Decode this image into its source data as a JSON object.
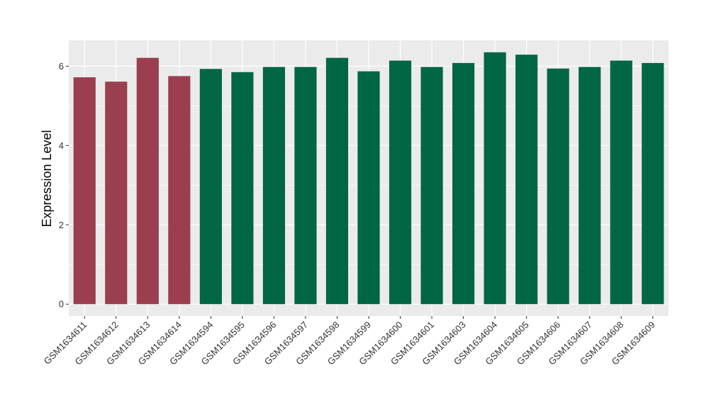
{
  "chart_data": {
    "type": "bar",
    "title": "",
    "xlabel": "",
    "ylabel": "Expression Level",
    "ylim": [
      -0.3,
      6.65
    ],
    "yticks": [
      0,
      2,
      4,
      6
    ],
    "grid": true,
    "legend": "none",
    "categories": [
      "GSM1634611",
      "GSM1634612",
      "GSM1634613",
      "GSM1634614",
      "GSM1634594",
      "GSM1634595",
      "GSM1634596",
      "GSM1634597",
      "GSM1634598",
      "GSM1634599",
      "GSM1634600",
      "GSM1634601",
      "GSM1634603",
      "GSM1634604",
      "GSM1634605",
      "GSM1634606",
      "GSM1634607",
      "GSM1634608",
      "GSM1634609"
    ],
    "values": [
      5.72,
      5.61,
      6.21,
      5.75,
      5.93,
      5.85,
      5.98,
      5.98,
      6.21,
      5.87,
      6.14,
      5.98,
      6.08,
      6.35,
      6.29,
      5.94,
      5.98,
      6.14,
      6.08
    ],
    "group_sizes": [
      4,
      15
    ],
    "colors": [
      "#9B3F50",
      "#006644"
    ],
    "panel_background": "#EBEBEB",
    "gridline_color": "#FFFFFF"
  }
}
